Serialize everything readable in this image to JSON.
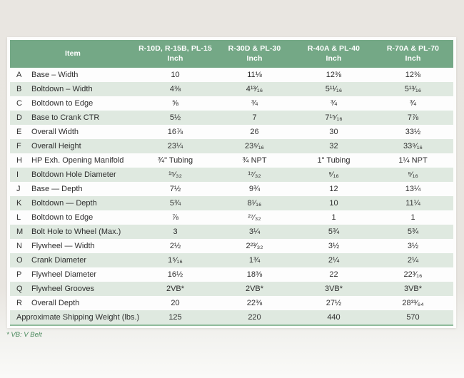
{
  "table": {
    "columns": [
      {
        "label": "Item",
        "unit": ""
      },
      {
        "label": "R-10D, R-15B, PL-15",
        "unit": "Inch"
      },
      {
        "label": "R-30D & PL-30",
        "unit": "Inch"
      },
      {
        "label": "R-40A & PL-40",
        "unit": "Inch"
      },
      {
        "label": "R-70A & PL-70",
        "unit": "Inch"
      }
    ],
    "rows": [
      {
        "letter": "A",
        "item": "Base – Width",
        "values": [
          "10",
          "11⅛",
          "12⅜",
          "12⅜"
        ]
      },
      {
        "letter": "B",
        "item": "Boltdown – Width",
        "values": [
          "4⅜",
          "4¹³⁄₁₆",
          "5¹¹⁄₁₆",
          "5¹³⁄₁₆"
        ]
      },
      {
        "letter": "C",
        "item": "Boltdown to Edge",
        "values": [
          "⅝",
          "¾",
          "¾",
          "¾"
        ]
      },
      {
        "letter": "D",
        "item": "Base to Crank CTR",
        "values": [
          "5½",
          "7",
          "7¹⁵⁄₁₆",
          "7⅞"
        ]
      },
      {
        "letter": "E",
        "item": "Overall Width",
        "values": [
          "16⅞",
          "26",
          "30",
          "33½"
        ]
      },
      {
        "letter": "F",
        "item": "Overall Height",
        "values": [
          "23¼",
          "23⁹⁄₁₆",
          "32",
          "33⁹⁄₁₆"
        ]
      },
      {
        "letter": "H",
        "item": "HP Exh. Opening Manifold",
        "values": [
          "¾\" Tubing",
          "¾ NPT",
          "1\" Tubing",
          "1¼ NPT"
        ]
      },
      {
        "letter": "I",
        "item": "Boltdown Hole Diameter",
        "values": [
          "¹⁵⁄₃₂",
          "¹⁷⁄₃₂",
          "⁹⁄₁₆",
          "⁹⁄₁₆"
        ]
      },
      {
        "letter": "J",
        "item": "Base — Depth",
        "values": [
          "7½",
          "9¾",
          "12",
          "13¼"
        ]
      },
      {
        "letter": "K",
        "item": "Boltdown — Depth",
        "values": [
          "5¾",
          "8¹⁄₁₆",
          "10",
          "11¼"
        ]
      },
      {
        "letter": "L",
        "item": "Boltdown to Edge",
        "values": [
          "⅞",
          "²⁷⁄₃₂",
          "1",
          "1"
        ]
      },
      {
        "letter": "M",
        "item": "Bolt Hole to Wheel (Max.)",
        "values": [
          "3",
          "3¼",
          "5¾",
          "5¾"
        ]
      },
      {
        "letter": "N",
        "item": "Flywheel — Width",
        "values": [
          "2½",
          "2²³⁄₃₂",
          "3½",
          "3½"
        ]
      },
      {
        "letter": "O",
        "item": "Crank Diameter",
        "values": [
          "1⁵⁄₁₆",
          "1¾",
          "2¼",
          "2¼"
        ]
      },
      {
        "letter": "P",
        "item": "Flywheel Diameter",
        "values": [
          "16½",
          "18⅜",
          "22",
          "22³⁄₁₆"
        ]
      },
      {
        "letter": "Q",
        "item": "Flywheel Grooves",
        "values": [
          "2VB*",
          "2VB*",
          "3VB*",
          "3VB*"
        ]
      },
      {
        "letter": "R",
        "item": "Overall Depth",
        "values": [
          "20",
          "22⅜",
          "27½",
          "28³³⁄₆₄"
        ]
      }
    ],
    "footer_row": {
      "item": "Approximate Shipping Weight (lbs.)",
      "values": [
        "125",
        "220",
        "440",
        "570"
      ]
    },
    "footnote": "* VB: V Belt"
  },
  "colors": {
    "header_green": "#74a886",
    "row_alt_green": "#dfe9e0",
    "bottom_border_green": "#8fbb9b",
    "footnote_green": "#46875a",
    "text": "#2f2f2f",
    "page_background": "#e8e5e0"
  }
}
